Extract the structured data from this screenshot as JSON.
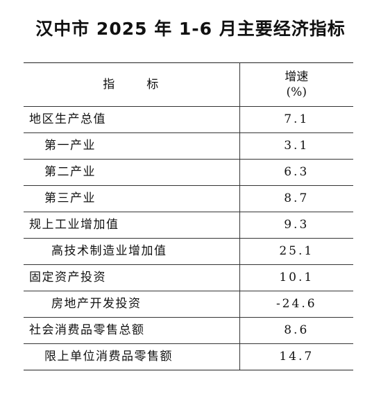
{
  "title": "汉中市 2025 年 1-6 月主要经济指标",
  "table": {
    "header_indicator_a": "指",
    "header_indicator_b": "标",
    "header_rate_line1": "增速",
    "header_rate_line2": "(%)",
    "rows": [
      {
        "label": "地区生产总值",
        "value": "7.1"
      },
      {
        "label": "第一产业",
        "value": "3.1"
      },
      {
        "label": "第二产业",
        "value": "6.3"
      },
      {
        "label": "第三产业",
        "value": "8.7"
      },
      {
        "label": "规上工业增加值",
        "value": "9.3"
      },
      {
        "label": "高技术制造业增加值",
        "value": "25.1"
      },
      {
        "label": "固定资产投资",
        "value": "10.1"
      },
      {
        "label": "房地产开发投资",
        "value": "-24.6"
      },
      {
        "label": "社会消费品零售总额",
        "value": "8.6"
      },
      {
        "label": "限上单位消费品零售额",
        "value": "14.7"
      }
    ]
  }
}
